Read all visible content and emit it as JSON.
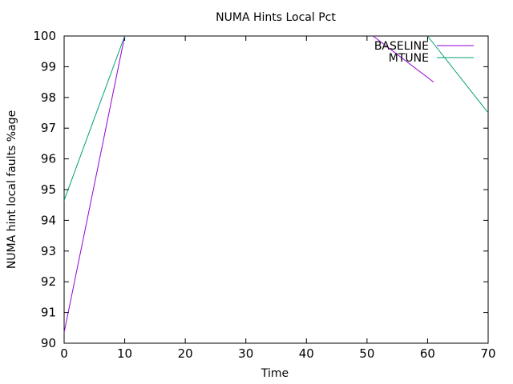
{
  "chart_data": {
    "type": "line",
    "title": "NUMA Hints Local Pct",
    "xlabel": "Time",
    "ylabel": "NUMA hint local faults %age",
    "xlim": [
      0,
      70
    ],
    "ylim": [
      90,
      100
    ],
    "xticks": [
      0,
      10,
      20,
      30,
      40,
      50,
      60,
      70
    ],
    "yticks": [
      90,
      91,
      92,
      93,
      94,
      95,
      96,
      97,
      98,
      99,
      100
    ],
    "grid": false,
    "legend_position": "top-right",
    "series": [
      {
        "name": "BASELINE",
        "color": "#9400d3",
        "segments": [
          [
            [
              0,
              90.35
            ],
            [
              10,
              100
            ]
          ],
          [
            [
              51,
              100
            ],
            [
              61,
              98.5
            ]
          ]
        ]
      },
      {
        "name": "MTUNE",
        "color": "#009e73",
        "segments": [
          [
            [
              0,
              94.65
            ],
            [
              10,
              100
            ]
          ],
          [
            [
              60,
              100
            ],
            [
              70,
              97.5
            ]
          ]
        ]
      }
    ]
  }
}
